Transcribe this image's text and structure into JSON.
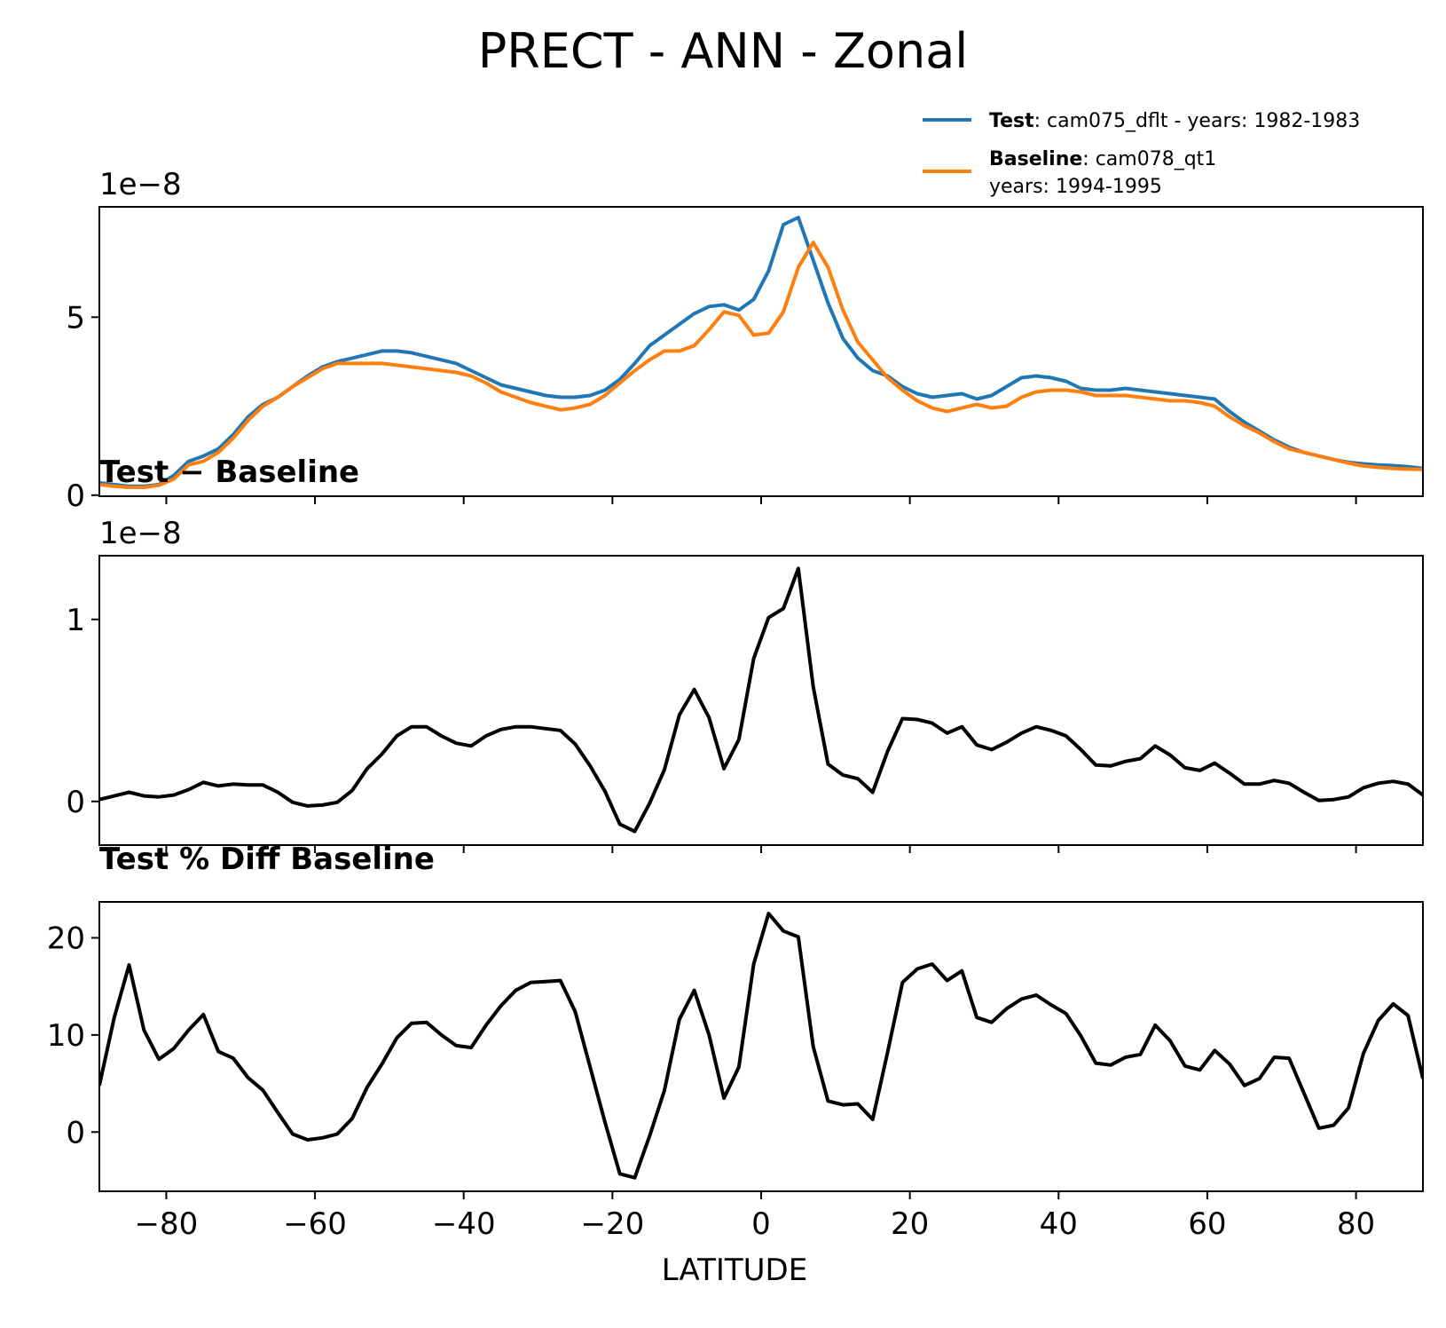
{
  "chart_data": [
    {
      "type": "line",
      "title": "PRECT - ANN - Zonal",
      "offset_label": "1e−8",
      "xlim": [
        -89,
        89
      ],
      "ylim": [
        -0.03,
        8.1
      ],
      "yticks": [
        0,
        5
      ],
      "ytick_labels": [
        "0",
        "5"
      ],
      "legend": [
        {
          "bold": "Test",
          "text": ": cam075_dflt - years: 1982-1983",
          "color": "#1f77b4"
        },
        {
          "bold": "Baseline",
          "text": ": cam078_qt1",
          "text2": "years: 1994-1995",
          "color": "#ff7f0e"
        }
      ],
      "series": [
        {
          "name": "Test",
          "color": "#1f77b4",
          "x": [
            -89,
            -87,
            -85,
            -83,
            -81,
            -79,
            -77,
            -75,
            -73,
            -71,
            -69,
            -67,
            -65,
            -63,
            -61,
            -59,
            -57,
            -55,
            -53,
            -51,
            -49,
            -47,
            -45,
            -43,
            -41,
            -39,
            -37,
            -35,
            -33,
            -31,
            -29,
            -27,
            -25,
            -23,
            -21,
            -19,
            -17,
            -15,
            -13,
            -11,
            -9,
            -7,
            -5,
            -3,
            -1,
            1,
            3,
            5,
            7,
            9,
            11,
            13,
            15,
            17,
            19,
            21,
            23,
            25,
            27,
            29,
            31,
            33,
            35,
            37,
            39,
            41,
            43,
            45,
            47,
            49,
            51,
            53,
            55,
            57,
            59,
            61,
            63,
            65,
            67,
            69,
            71,
            73,
            75,
            77,
            79,
            81,
            83,
            85,
            87,
            89
          ],
          "values": [
            0.35,
            0.3,
            0.25,
            0.25,
            0.3,
            0.55,
            0.95,
            1.1,
            1.3,
            1.7,
            2.2,
            2.55,
            2.75,
            3.05,
            3.35,
            3.6,
            3.75,
            3.85,
            3.95,
            4.05,
            4.05,
            4.0,
            3.9,
            3.8,
            3.7,
            3.5,
            3.3,
            3.1,
            3.0,
            2.9,
            2.8,
            2.75,
            2.75,
            2.8,
            2.95,
            3.25,
            3.7,
            4.2,
            4.5,
            4.8,
            5.1,
            5.3,
            5.35,
            5.2,
            5.5,
            6.3,
            7.6,
            7.8,
            6.6,
            5.4,
            4.4,
            3.85,
            3.5,
            3.35,
            3.05,
            2.85,
            2.75,
            2.8,
            2.85,
            2.7,
            2.8,
            3.05,
            3.3,
            3.35,
            3.3,
            3.2,
            3.0,
            2.95,
            2.95,
            3.0,
            2.95,
            2.9,
            2.85,
            2.8,
            2.75,
            2.7,
            2.35,
            2.05,
            1.8,
            1.55,
            1.35,
            1.2,
            1.1,
            1.0,
            0.92,
            0.88,
            0.85,
            0.83,
            0.8,
            0.75
          ]
        },
        {
          "name": "Baseline",
          "color": "#ff7f0e",
          "x": [
            -89,
            -87,
            -85,
            -83,
            -81,
            -79,
            -77,
            -75,
            -73,
            -71,
            -69,
            -67,
            -65,
            -63,
            -61,
            -59,
            -57,
            -55,
            -53,
            -51,
            -49,
            -47,
            -45,
            -43,
            -41,
            -39,
            -37,
            -35,
            -33,
            -31,
            -29,
            -27,
            -25,
            -23,
            -21,
            -19,
            -17,
            -15,
            -13,
            -11,
            -9,
            -7,
            -5,
            -3,
            -1,
            1,
            3,
            5,
            7,
            9,
            11,
            13,
            15,
            17,
            19,
            21,
            23,
            25,
            27,
            29,
            31,
            33,
            35,
            37,
            39,
            41,
            43,
            45,
            47,
            49,
            51,
            53,
            55,
            57,
            59,
            61,
            63,
            65,
            67,
            69,
            71,
            73,
            75,
            77,
            79,
            81,
            83,
            85,
            87,
            89
          ],
          "values": [
            0.3,
            0.25,
            0.22,
            0.22,
            0.28,
            0.45,
            0.85,
            0.95,
            1.2,
            1.6,
            2.1,
            2.5,
            2.75,
            3.05,
            3.3,
            3.55,
            3.7,
            3.7,
            3.7,
            3.7,
            3.65,
            3.6,
            3.55,
            3.5,
            3.45,
            3.35,
            3.15,
            2.9,
            2.75,
            2.6,
            2.5,
            2.4,
            2.45,
            2.55,
            2.8,
            3.15,
            3.5,
            3.8,
            4.05,
            4.05,
            4.2,
            4.65,
            5.15,
            5.05,
            4.5,
            4.55,
            5.15,
            6.4,
            7.1,
            6.4,
            5.2,
            4.3,
            3.8,
            3.3,
            2.95,
            2.65,
            2.45,
            2.35,
            2.45,
            2.55,
            2.45,
            2.5,
            2.75,
            2.9,
            2.95,
            2.95,
            2.9,
            2.8,
            2.8,
            2.8,
            2.75,
            2.7,
            2.65,
            2.65,
            2.6,
            2.5,
            2.2,
            1.95,
            1.75,
            1.5,
            1.3,
            1.2,
            1.1,
            1.0,
            0.9,
            0.82,
            0.78,
            0.75,
            0.73,
            0.72
          ]
        }
      ]
    },
    {
      "type": "line",
      "title": "Test − Baseline",
      "offset_label": "1e−8",
      "xlim": [
        -89,
        89
      ],
      "ylim": [
        -0.24,
        1.35
      ],
      "yticks": [
        0,
        1
      ],
      "ytick_labels": [
        "0",
        "1"
      ],
      "series": [
        {
          "name": "Test − Baseline",
          "color": "#000000",
          "x": [
            -89,
            -87,
            -85,
            -83,
            -81,
            -79,
            -77,
            -75,
            -73,
            -71,
            -69,
            -67,
            -65,
            -63,
            -61,
            -59,
            -57,
            -55,
            -53,
            -51,
            -49,
            -47,
            -45,
            -43,
            -41,
            -39,
            -37,
            -35,
            -33,
            -31,
            -29,
            -27,
            -25,
            -23,
            -21,
            -19,
            -17,
            -15,
            -13,
            -11,
            -9,
            -7,
            -5,
            -3,
            -1,
            1,
            3,
            5,
            7,
            9,
            11,
            13,
            15,
            17,
            19,
            21,
            23,
            25,
            27,
            29,
            31,
            33,
            35,
            37,
            39,
            41,
            43,
            45,
            47,
            49,
            51,
            53,
            55,
            57,
            59,
            61,
            63,
            65,
            67,
            69,
            71,
            73,
            75,
            77,
            79,
            81,
            83,
            85,
            87,
            89
          ],
          "values": [
            0.01,
            0.03,
            0.05,
            0.03,
            0.025,
            0.035,
            0.065,
            0.105,
            0.085,
            0.095,
            0.09,
            0.09,
            0.05,
            -0.005,
            -0.025,
            -0.02,
            -0.005,
            0.06,
            0.18,
            0.26,
            0.36,
            0.41,
            0.41,
            0.36,
            0.32,
            0.305,
            0.36,
            0.395,
            0.41,
            0.41,
            0.4,
            0.39,
            0.315,
            0.195,
            0.055,
            -0.125,
            -0.165,
            -0.01,
            0.175,
            0.475,
            0.615,
            0.46,
            0.18,
            0.34,
            0.785,
            1.01,
            1.06,
            1.28,
            0.63,
            0.205,
            0.145,
            0.125,
            0.05,
            0.275,
            0.455,
            0.45,
            0.43,
            0.375,
            0.41,
            0.31,
            0.285,
            0.325,
            0.375,
            0.41,
            0.39,
            0.36,
            0.285,
            0.2,
            0.195,
            0.22,
            0.235,
            0.305,
            0.255,
            0.185,
            0.17,
            0.21,
            0.155,
            0.095,
            0.095,
            0.115,
            0.1,
            0.05,
            0.005,
            0.01,
            0.025,
            0.075,
            0.1,
            0.11,
            0.095,
            0.035
          ]
        }
      ]
    },
    {
      "type": "line",
      "title": "Test % Diff Baseline",
      "xlabel": "LATITUDE",
      "xlim": [
        -89,
        89
      ],
      "ylim": [
        -6.1,
        23.7
      ],
      "yticks": [
        0,
        10,
        20
      ],
      "ytick_labels": [
        "0",
        "10",
        "20"
      ],
      "xticks": [
        -80,
        -60,
        -40,
        -20,
        0,
        20,
        40,
        60,
        80
      ],
      "xtick_labels": [
        "−80",
        "−60",
        "−40",
        "−20",
        "0",
        "20",
        "40",
        "60",
        "80"
      ],
      "series": [
        {
          "name": "Test % Diff Baseline",
          "color": "#000000",
          "x": [
            -89,
            -87,
            -85,
            -83,
            -81,
            -79,
            -77,
            -75,
            -73,
            -71,
            -69,
            -67,
            -65,
            -63,
            -61,
            -59,
            -57,
            -55,
            -53,
            -51,
            -49,
            -47,
            -45,
            -43,
            -41,
            -39,
            -37,
            -35,
            -33,
            -31,
            -29,
            -27,
            -25,
            -23,
            -21,
            -19,
            -17,
            -15,
            -13,
            -11,
            -9,
            -7,
            -5,
            -3,
            -1,
            1,
            3,
            5,
            7,
            9,
            11,
            13,
            15,
            17,
            19,
            21,
            23,
            25,
            27,
            29,
            31,
            33,
            35,
            37,
            39,
            41,
            43,
            45,
            47,
            49,
            51,
            53,
            55,
            57,
            59,
            61,
            63,
            65,
            67,
            69,
            71,
            73,
            75,
            77,
            79,
            81,
            83,
            85,
            87,
            89
          ],
          "values": [
            4.8,
            11.8,
            17.2,
            10.5,
            7.5,
            8.6,
            10.5,
            12.1,
            8.3,
            7.6,
            5.6,
            4.3,
            2.0,
            -0.2,
            -0.8,
            -0.6,
            -0.2,
            1.4,
            4.6,
            7.0,
            9.7,
            11.2,
            11.3,
            10.0,
            8.9,
            8.7,
            11.0,
            13.0,
            14.6,
            15.4,
            15.5,
            15.6,
            12.4,
            6.7,
            1.0,
            -4.3,
            -4.7,
            -0.4,
            4.3,
            11.6,
            14.6,
            10.0,
            3.5,
            6.7,
            17.3,
            22.5,
            20.7,
            20.1,
            8.8,
            3.2,
            2.8,
            2.9,
            1.3,
            8.2,
            15.4,
            16.8,
            17.3,
            15.6,
            16.6,
            11.8,
            11.3,
            12.7,
            13.7,
            14.1,
            13.1,
            12.2,
            9.9,
            7.1,
            6.9,
            7.7,
            8.0,
            11.0,
            9.4,
            6.8,
            6.4,
            8.4,
            7.0,
            4.8,
            5.5,
            7.7,
            7.6,
            4.0,
            0.4,
            0.7,
            2.5,
            8.1,
            11.5,
            13.2,
            12.0,
            5.5
          ]
        }
      ]
    }
  ]
}
